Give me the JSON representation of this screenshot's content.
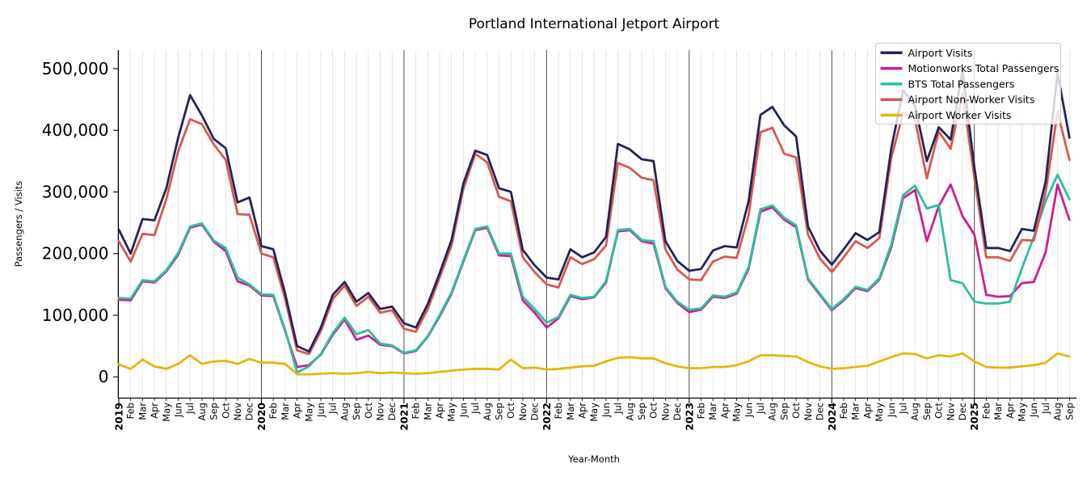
{
  "chart_data": {
    "type": "line",
    "title": "Portland International Jetport Airport",
    "xlabel": "Year-Month",
    "ylabel": "Passengers / Visits",
    "legend_position": "upper right",
    "grid": "vertical gridlines per month, dark vertical line at each January (year boundary), no horizontal gridlines",
    "ylim": [
      -34000,
      530000
    ],
    "y_tick_values": [
      0,
      100000,
      200000,
      300000,
      400000,
      500000
    ],
    "y_tick_labels": [
      "0",
      "100,000",
      "200,000",
      "300,000",
      "400,000",
      "500,000"
    ],
    "x_labels": [
      "2019",
      "Feb",
      "Mar",
      "Apr",
      "May",
      "Jun",
      "Jul",
      "Aug",
      "Sep",
      "Oct",
      "Nov",
      "Dec",
      "2020",
      "Feb",
      "Mar",
      "Apr",
      "May",
      "Jun",
      "Jul",
      "Aug",
      "Sep",
      "Oct",
      "Nov",
      "Dec",
      "2021",
      "Feb",
      "Mar",
      "Apr",
      "May",
      "Jun",
      "Jul",
      "Aug",
      "Sep",
      "Oct",
      "Nov",
      "Dec",
      "2022",
      "Feb",
      "Mar",
      "Apr",
      "May",
      "Jun",
      "Jul",
      "Aug",
      "Sep",
      "Oct",
      "Nov",
      "Dec",
      "2023",
      "Feb",
      "Mar",
      "Apr",
      "May",
      "Jun",
      "Jul",
      "Aug",
      "Sep",
      "Oct",
      "Nov",
      "Dec",
      "2024",
      "Feb",
      "Mar",
      "Apr",
      "May",
      "Jun",
      "Jul",
      "Aug",
      "Sep",
      "Oct",
      "Nov",
      "Dec",
      "2025",
      "Feb",
      "Mar",
      "Apr",
      "May",
      "Jun",
      "Jul",
      "Aug",
      "Sep"
    ],
    "draw_order": [
      1,
      2,
      3,
      0,
      4
    ],
    "series": [
      {
        "name": "Airport Visits",
        "color": "#24235a",
        "values": [
          239000,
          200000,
          256000,
          254000,
          306000,
          388000,
          457000,
          424000,
          386000,
          371000,
          283000,
          291000,
          212000,
          207000,
          135000,
          50000,
          41000,
          80000,
          133000,
          154000,
          122000,
          136000,
          110000,
          114000,
          87000,
          80000,
          118000,
          168000,
          222000,
          314000,
          367000,
          360000,
          306000,
          300000,
          206000,
          181000,
          161000,
          158000,
          207000,
          194000,
          202000,
          227000,
          378000,
          369000,
          353000,
          350000,
          220000,
          188000,
          172000,
          175000,
          205000,
          212000,
          210000,
          285000,
          425000,
          438000,
          408000,
          390000,
          244000,
          205000,
          182000,
          207000,
          233000,
          222000,
          235000,
          370000,
          465000,
          440000,
          350000,
          405000,
          385000,
          496000,
          340000,
          209000,
          209000,
          204000,
          240000,
          237000,
          317000,
          493000,
          388000
        ]
      },
      {
        "name": "Motionworks Total Passengers",
        "color": "#cc1f8d",
        "values": [
          125000,
          124000,
          155000,
          153000,
          171000,
          198000,
          242000,
          247000,
          219000,
          204000,
          155000,
          148000,
          132000,
          131000,
          74000,
          16000,
          19000,
          36000,
          68000,
          93000,
          60000,
          67000,
          52000,
          50000,
          38000,
          42000,
          65000,
          98000,
          135000,
          187000,
          238000,
          242000,
          197000,
          196000,
          124000,
          104000,
          80000,
          95000,
          131000,
          126000,
          129000,
          153000,
          236000,
          238000,
          220000,
          216000,
          144000,
          120000,
          105000,
          109000,
          130000,
          128000,
          135000,
          175000,
          268000,
          275000,
          255000,
          243000,
          158000,
          133000,
          108000,
          124000,
          144000,
          139000,
          158000,
          210000,
          290000,
          303000,
          220000,
          277000,
          312000,
          261000,
          231000,
          133000,
          130000,
          131000,
          152000,
          154000,
          202000,
          312000,
          255000
        ]
      },
      {
        "name": "BTS Total Passengers",
        "color": "#2dbf9f",
        "values": [
          128000,
          127000,
          157000,
          155000,
          173000,
          201000,
          244000,
          249000,
          221000,
          209000,
          161000,
          150000,
          134000,
          133000,
          76000,
          7000,
          17000,
          37000,
          71000,
          96000,
          69000,
          76000,
          54000,
          51000,
          39000,
          43000,
          66000,
          100000,
          137000,
          189000,
          240000,
          244000,
          200000,
          200000,
          130000,
          110000,
          88000,
          97000,
          133000,
          128000,
          130000,
          155000,
          238000,
          240000,
          222000,
          220000,
          146000,
          122000,
          109000,
          111000,
          132000,
          130000,
          137000,
          178000,
          272000,
          278000,
          258000,
          246000,
          160000,
          135000,
          110000,
          126000,
          146000,
          141000,
          160000,
          215000,
          295000,
          310000,
          273000,
          279000,
          157000,
          152000,
          122000,
          119000,
          119000,
          122000,
          176000,
          227000,
          285000,
          328000,
          288000
        ]
      },
      {
        "name": "Airport Non-Worker Visits",
        "color": "#d8584e",
        "values": [
          220000,
          187000,
          232000,
          230000,
          288000,
          366000,
          418000,
          410000,
          377000,
          352000,
          264000,
          263000,
          200000,
          194000,
          126000,
          43000,
          37000,
          74000,
          126000,
          148000,
          115000,
          130000,
          104000,
          108000,
          78000,
          73000,
          110000,
          161000,
          213000,
          305000,
          362000,
          348000,
          292000,
          285000,
          194000,
          170000,
          150000,
          145000,
          194000,
          183000,
          191000,
          213000,
          347000,
          339000,
          323000,
          319000,
          207000,
          174000,
          158000,
          157000,
          187000,
          195000,
          193000,
          262000,
          397000,
          404000,
          362000,
          356000,
          231000,
          192000,
          170000,
          194000,
          220000,
          209000,
          225000,
          355000,
          428000,
          418000,
          322000,
          398000,
          370000,
          460000,
          323000,
          194000,
          194000,
          188000,
          222000,
          221000,
          299000,
          430000,
          352000
        ]
      },
      {
        "name": "Airport Worker Visits",
        "color": "#e7b60a",
        "values": [
          20000,
          13000,
          28000,
          17000,
          13000,
          21000,
          35000,
          21000,
          25000,
          26000,
          21000,
          29000,
          23000,
          23000,
          21000,
          4000,
          4000,
          5000,
          6000,
          5000,
          6000,
          8000,
          6000,
          7000,
          6000,
          5000,
          6000,
          8000,
          10000,
          12000,
          13000,
          13000,
          12000,
          28000,
          14000,
          15000,
          12000,
          13000,
          15000,
          17000,
          18000,
          25000,
          31000,
          32000,
          30000,
          30000,
          22000,
          17000,
          14000,
          14000,
          16000,
          16000,
          19000,
          25000,
          35000,
          35000,
          34000,
          33000,
          24000,
          17000,
          13000,
          14000,
          16000,
          18000,
          25000,
          32000,
          38000,
          37000,
          30000,
          35000,
          33000,
          38000,
          25000,
          16000,
          15000,
          15000,
          17000,
          19000,
          23000,
          38000,
          33000
        ]
      }
    ],
    "style": {
      "background": "#ffffff",
      "grid_month_color": "#dcdcdc",
      "grid_year_color": "#3c3c3c",
      "spine_color": "#000000",
      "legend_border_color": "#cccccc",
      "legend_background": "rgba(255,255,255,0.8)"
    }
  }
}
